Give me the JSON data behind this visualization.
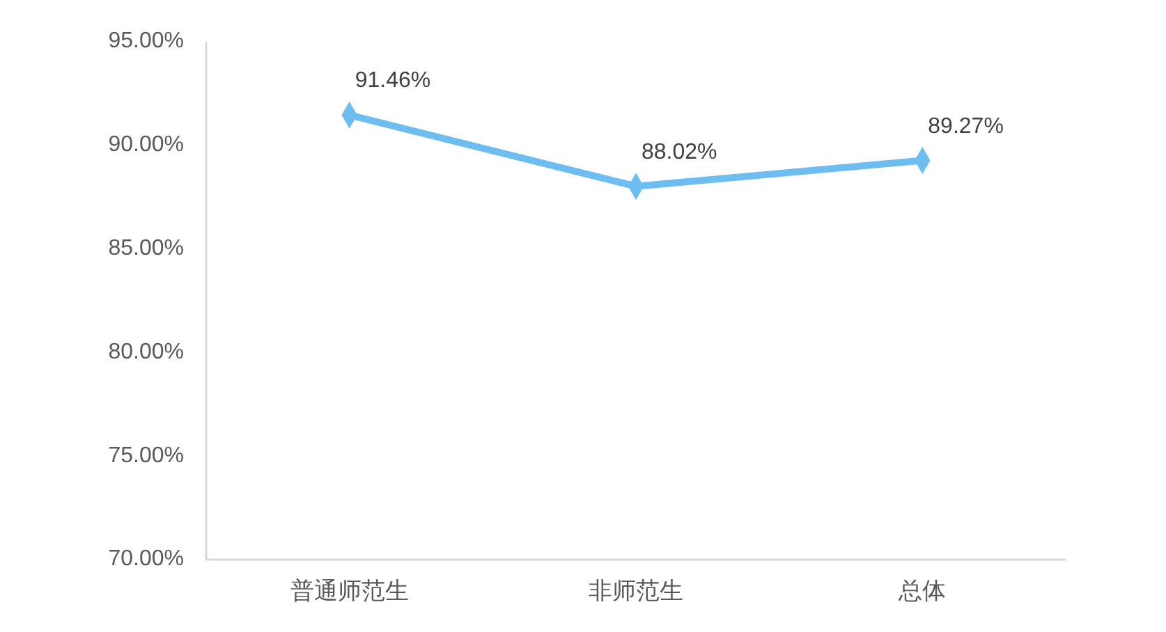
{
  "chart_data": {
    "type": "line",
    "categories": [
      "普通师范生",
      "非师范生",
      "总体"
    ],
    "series": [
      {
        "color": "#6dbdf0",
        "values": [
          91.46,
          88.02,
          89.27
        ],
        "value_labels": [
          "91.46%",
          "88.02%",
          "89.27%"
        ]
      }
    ],
    "ylim": [
      70,
      95
    ],
    "yticks": [
      {
        "value": 70,
        "label": "70.00%"
      },
      {
        "value": 75,
        "label": "75.00%"
      },
      {
        "value": 80,
        "label": "80.00%"
      },
      {
        "value": 85,
        "label": "85.00%"
      },
      {
        "value": 90,
        "label": "90.00%"
      },
      {
        "value": 95,
        "label": "95.00%"
      }
    ],
    "marker": "diamond",
    "line_style": "solid",
    "grid": false
  }
}
